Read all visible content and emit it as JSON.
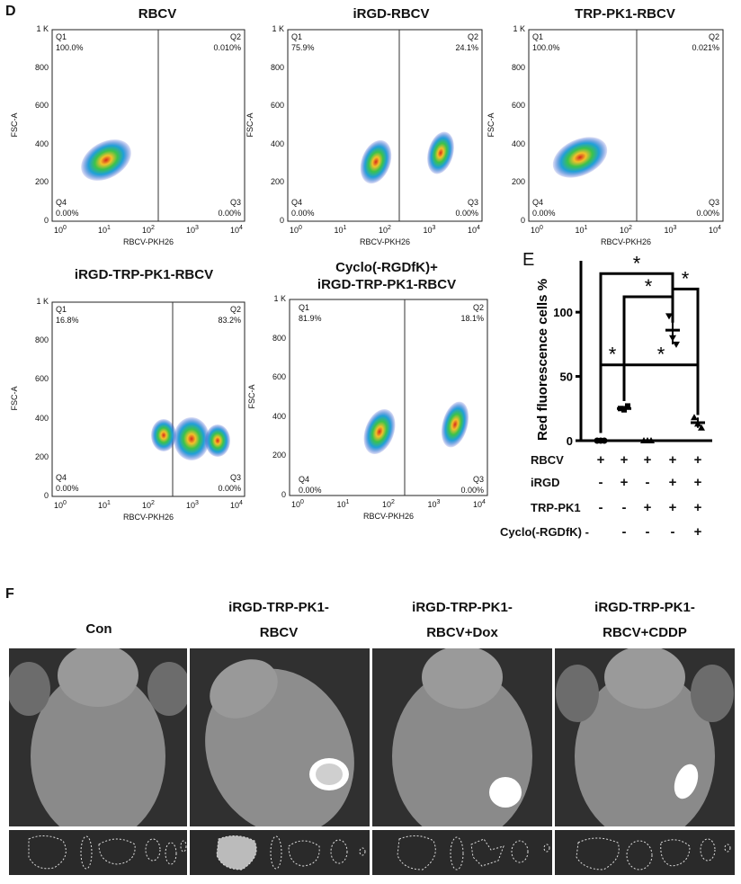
{
  "panel_d": {
    "letter": "D",
    "plots": [
      {
        "title": "RBCV",
        "q1_label": "Q1",
        "q2_label": "Q2",
        "q3_label": "Q3",
        "q4_label": "Q4",
        "q1": "100.0%",
        "q2": "0.010%",
        "q3": "0.00%",
        "q4": "0.00%"
      },
      {
        "title": "iRGD-RBCV",
        "q1_label": "Q1",
        "q2_label": "Q2",
        "q3_label": "Q3",
        "q4_label": "Q4",
        "q1": "75.9%",
        "q2": "24.1%",
        "q3": "0.00%",
        "q4": "0.00%"
      },
      {
        "title": "TRP-PK1-RBCV",
        "q1_label": "Q1",
        "q2_label": "Q2",
        "q3_label": "Q3",
        "q4_label": "Q4",
        "q1": "100.0%",
        "q2": "0.021%",
        "q3": "0.00%",
        "q4": "0.00%"
      },
      {
        "title": "iRGD-TRP-PK1-RBCV",
        "q1_label": "Q1",
        "q2_label": "Q2",
        "q3_label": "Q3",
        "q4_label": "Q4",
        "q1": "16.8%",
        "q2": "83.2%",
        "q3": "0.00%",
        "q4": "0.00%"
      },
      {
        "title_line1": "Cyclo(-RGDfK)+",
        "title_line2": "iRGD-TRP-PK1-RBCV",
        "q1_label": "Q1",
        "q2_label": "Q2",
        "q3_label": "Q3",
        "q4_label": "Q4",
        "q1": "81.9%",
        "q2": "18.1%",
        "q3": "0.00%",
        "q4": "0.00%"
      }
    ],
    "y_axis_label": "FSC-A",
    "x_axis_label": "RBCV-PKH26",
    "y_ticks": [
      "0",
      "200",
      "400",
      "600",
      "800",
      "1 K"
    ],
    "x_ticks": [
      "10",
      "0",
      "10",
      "1",
      "10",
      "2",
      "10",
      "3",
      "10",
      "4"
    ]
  },
  "panel_e": {
    "letter": "E",
    "ylabel": "Red fluorescence cells %",
    "y_ticks": [
      "0",
      "50",
      "100"
    ],
    "sig_marker": "*",
    "rows": [
      {
        "label": "RBCV",
        "marks": [
          "+",
          "+",
          "+",
          "+",
          "+"
        ]
      },
      {
        "label": "iRGD",
        "marks": [
          "-",
          "+",
          "-",
          "+",
          "+"
        ]
      },
      {
        "label": "TRP-PK1",
        "marks": [
          "-",
          "-",
          "+",
          "+",
          "+"
        ]
      },
      {
        "label": "Cyclo(-RGDfK)",
        "marks": [
          "-",
          "-",
          "-",
          "-",
          "+"
        ]
      }
    ],
    "row_dash": "-"
  },
  "chart_data": {
    "type": "scatter",
    "ylabel": "Red fluorescence cells %",
    "ylim": [
      0,
      140
    ],
    "categories": [
      "RBCV",
      "iRGD-RBCV",
      "TRP-PK1-RBCV",
      "iRGD-TRP-PK1-RBCV",
      "Cyclo(-RGDfK)+iRGD-TRP-PK1-RBCV"
    ],
    "series": [
      {
        "values": [
          0.0,
          24.1,
          0.02,
          83.2,
          18.1
        ],
        "replicates": [
          [
            0,
            0,
            0
          ],
          [
            25,
            24,
            27
          ],
          [
            0,
            0,
            0
          ],
          [
            97,
            80,
            75
          ],
          [
            18,
            13,
            10
          ]
        ],
        "means": [
          0,
          25,
          0,
          86,
          14
        ]
      }
    ],
    "significance_pairs": [
      "*",
      "*",
      "*",
      "*",
      "*"
    ]
  },
  "panel_f": {
    "letter": "F",
    "columns": [
      {
        "line1": "Con",
        "line2": ""
      },
      {
        "line1": "iRGD-TRP-PK1-",
        "line2": "RBCV"
      },
      {
        "line1": "iRGD-TRP-PK1-",
        "line2": "RBCV+Dox"
      },
      {
        "line1": "iRGD-TRP-PK1-",
        "line2": "RBCV+CDDP"
      }
    ]
  }
}
